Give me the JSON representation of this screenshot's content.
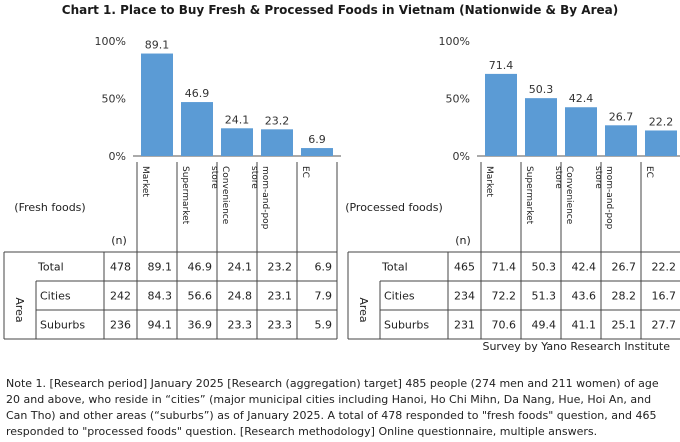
{
  "title": "Chart 1. Place to Buy Fresh & Processed Foods in Vietnam (Nationwide & By Area)",
  "source": "Survey by Yano Research Institute",
  "note": "Note 1. [Research period] January 2025 [Research (aggregation) target] 485 people (274 men and 211 women) of age 20 and above, who reside in “cities” (major municipal cities including Hanoi, Ho Chi Mihn, Da Nang, Hue, Hoi An, and Can Tho) and other areas (“suburbs”) as of January 2025. A total of 478 responded to \"fresh foods\" question, and 465 responded to \"processed foods\" question. [Research methodology] Online questionnaire, multiple answers.",
  "colors": {
    "bar": "#5b9bd5"
  },
  "chart_data": [
    {
      "type": "bar",
      "category_title": "(Fresh foods)",
      "categories": [
        "Market",
        "Supermarket",
        "Convenience store",
        "mom-and-pop store",
        "EC"
      ],
      "yticks": [
        "0%",
        "50%",
        "100%"
      ],
      "ylim": [
        0,
        100
      ],
      "values": [
        89.1,
        46.9,
        24.1,
        23.2,
        6.9
      ],
      "value_labels": [
        "89.1",
        "46.9",
        "24.1",
        "23.2",
        "6.9"
      ],
      "table": {
        "n_header": "(n)",
        "area_label": "Area",
        "rows": [
          {
            "label": "Total",
            "n": "478",
            "values": [
              "89.1",
              "46.9",
              "24.1",
              "23.2",
              "6.9"
            ]
          },
          {
            "label": "Cities",
            "n": "242",
            "values": [
              "84.3",
              "56.6",
              "24.8",
              "23.1",
              "7.9"
            ]
          },
          {
            "label": "Suburbs",
            "n": "236",
            "values": [
              "94.1",
              "36.9",
              "23.3",
              "23.3",
              "5.9"
            ]
          }
        ]
      }
    },
    {
      "type": "bar",
      "category_title": "(Processed foods)",
      "categories": [
        "Market",
        "Supermarket",
        "Convenience store",
        "mom-and-pop store",
        "EC"
      ],
      "yticks": [
        "0%",
        "50%",
        "100%"
      ],
      "ylim": [
        0,
        100
      ],
      "values": [
        71.4,
        50.3,
        42.4,
        26.7,
        22.2
      ],
      "value_labels": [
        "71.4",
        "50.3",
        "42.4",
        "26.7",
        "22.2"
      ],
      "table": {
        "n_header": "(n)",
        "area_label": "Area",
        "rows": [
          {
            "label": "Total",
            "n": "465",
            "values": [
              "71.4",
              "50.3",
              "42.4",
              "26.7",
              "22.2"
            ]
          },
          {
            "label": "Cities",
            "n": "234",
            "values": [
              "72.2",
              "51.3",
              "43.6",
              "28.2",
              "16.7"
            ]
          },
          {
            "label": "Suburbs",
            "n": "231",
            "values": [
              "70.6",
              "49.4",
              "41.1",
              "25.1",
              "27.7"
            ]
          }
        ]
      }
    }
  ]
}
